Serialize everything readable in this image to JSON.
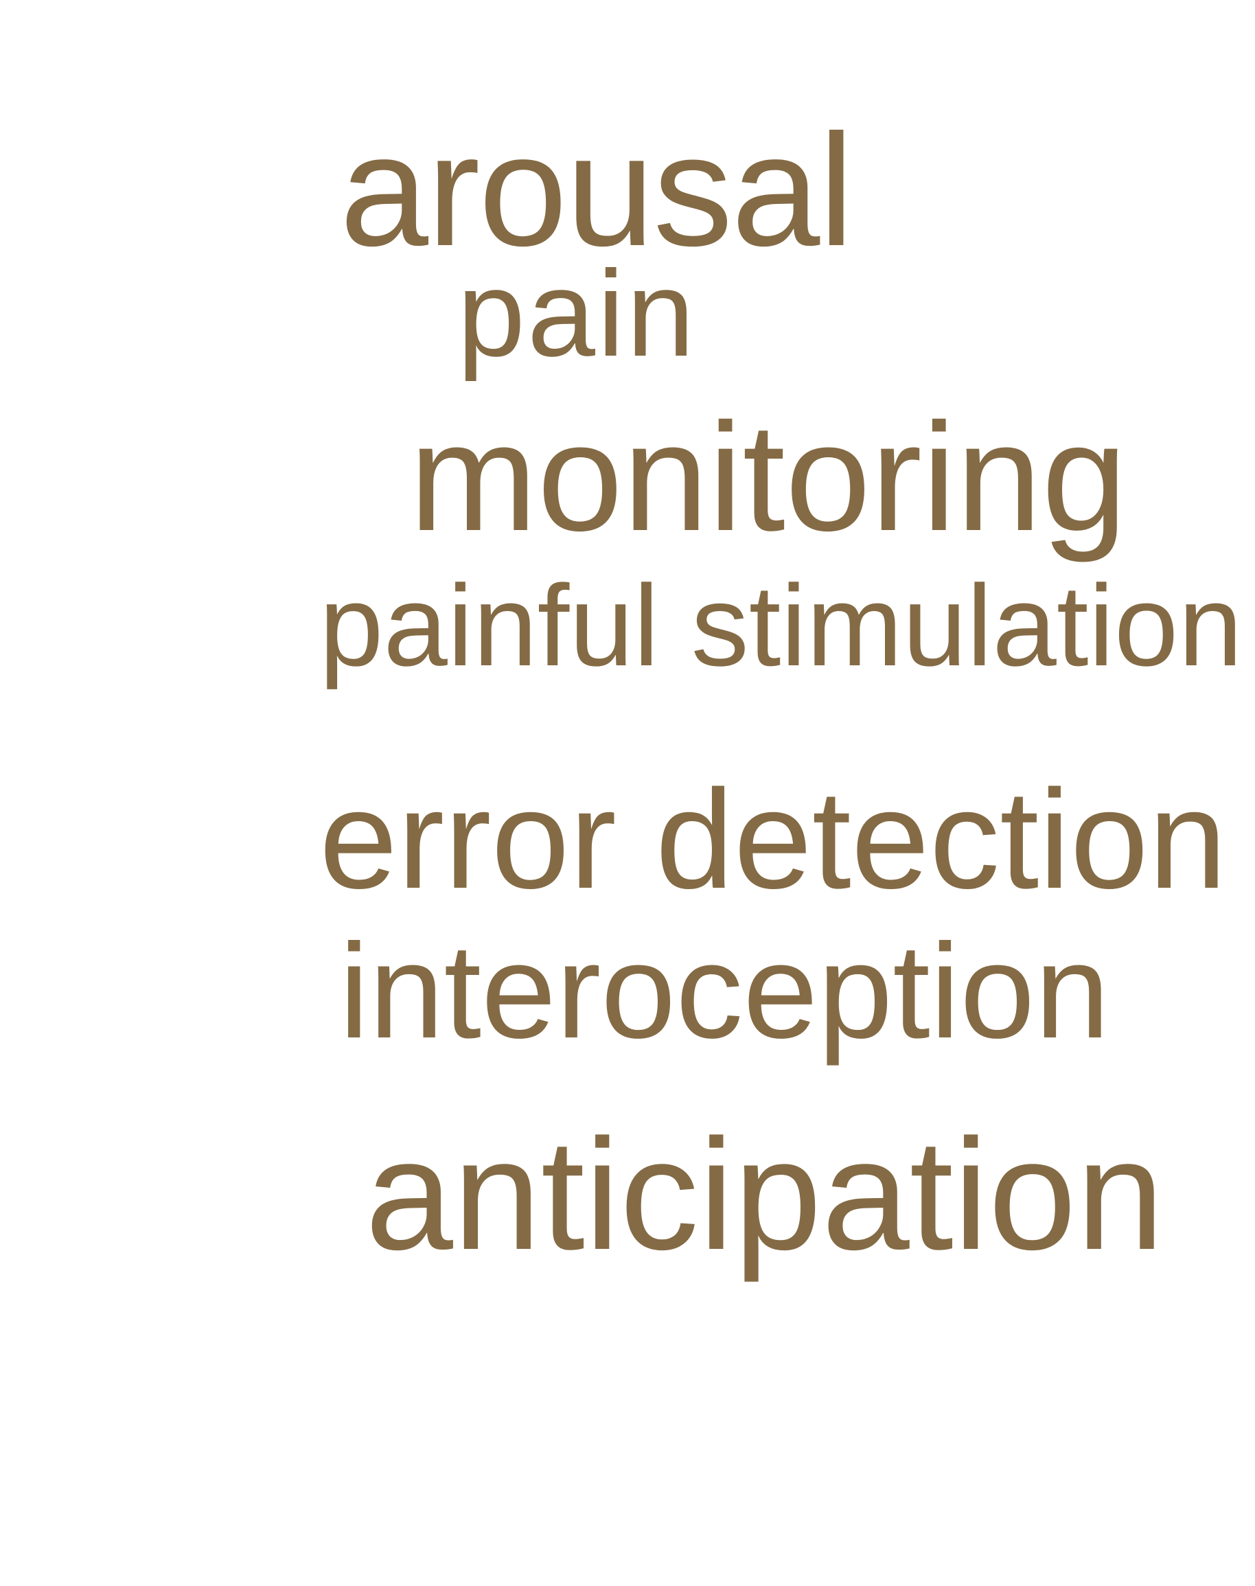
{
  "colors": {
    "background": "#ffffff",
    "word": "#846b45"
  },
  "word_cloud": {
    "words": [
      "arousal",
      "pain",
      "monitoring",
      "painful stimulation",
      "error detection",
      "interoception",
      "anticipation"
    ]
  }
}
